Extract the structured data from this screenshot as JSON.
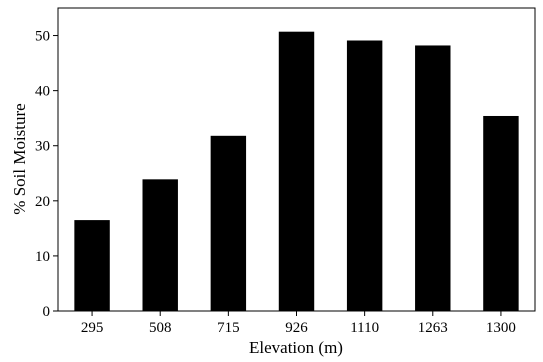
{
  "chart_data": {
    "type": "bar",
    "xlabel": "Elevation (m)",
    "ylabel": "% Soil Moisture",
    "categories": [
      "295",
      "508",
      "715",
      "926",
      "1110",
      "1263",
      "1300"
    ],
    "values": [
      16.5,
      23.9,
      31.8,
      50.7,
      49.1,
      48.2,
      35.4
    ],
    "ylim": [
      0,
      55
    ],
    "yticks": [
      0,
      10,
      20,
      30,
      40,
      50
    ],
    "grid": false,
    "legend": "none",
    "bar_color": "#000000",
    "axis_color": "#000000"
  }
}
